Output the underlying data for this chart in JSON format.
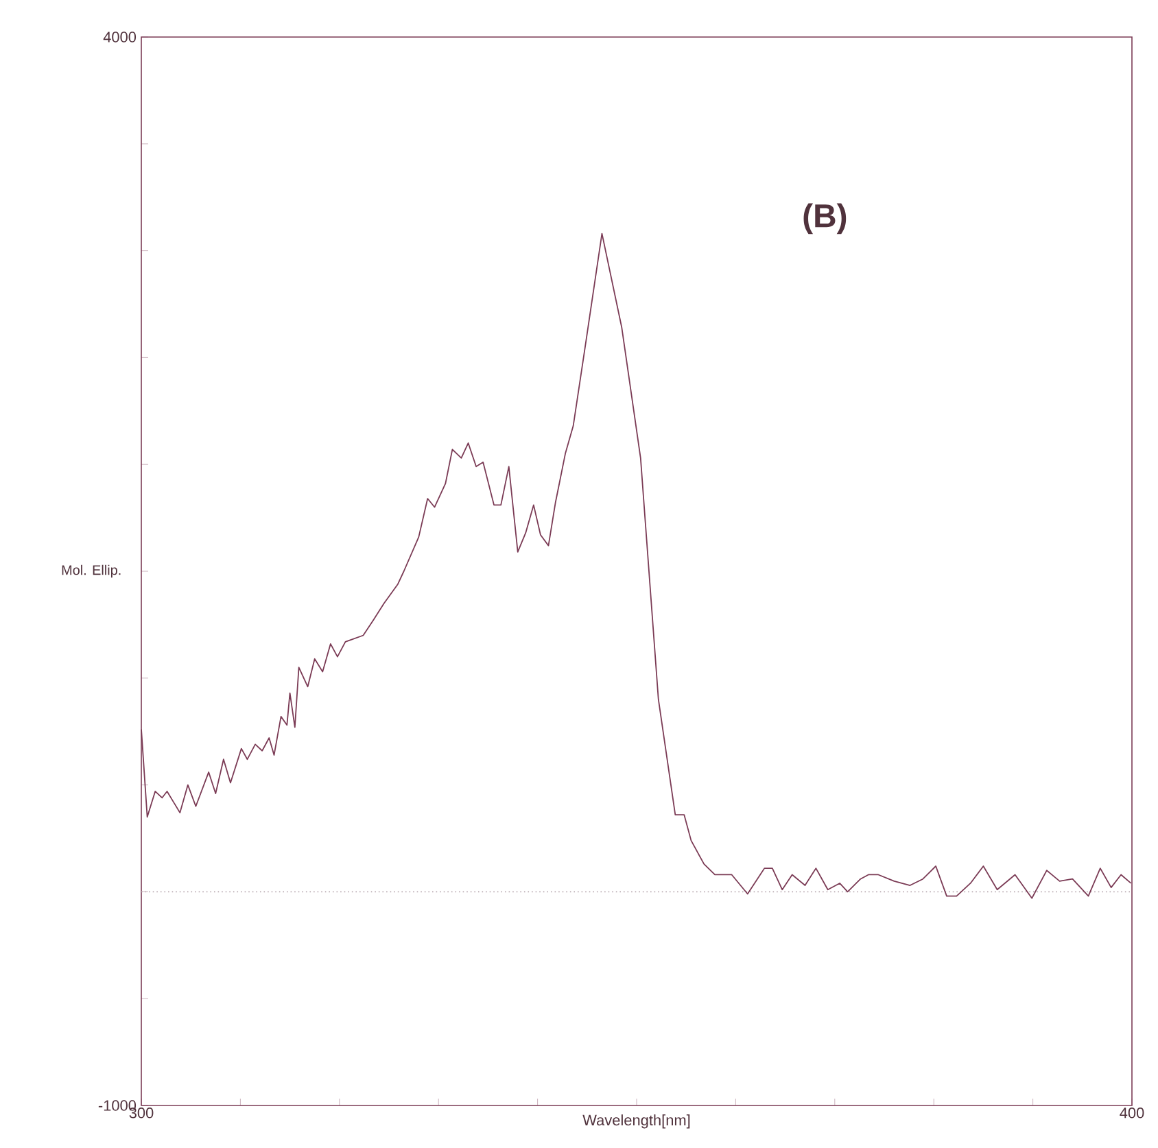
{
  "chart_data": {
    "type": "line",
    "xlabel": "Wavelength[nm]",
    "ylabel": "Mol. Ellip.",
    "annotations": [
      "(B)"
    ],
    "xlim": [
      300,
      400
    ],
    "ylim": [
      -1000,
      4000
    ],
    "xticks": [
      300,
      {
        "value": 310,
        "label": null
      },
      {
        "value": 320,
        "label": null
      },
      {
        "value": 330,
        "label": null
      },
      {
        "value": 340,
        "label": null
      },
      {
        "value": 350,
        "label": null
      },
      {
        "value": 360,
        "label": null
      },
      {
        "value": 370,
        "label": null
      },
      {
        "value": 380,
        "label": null
      },
      {
        "value": 390,
        "label": null
      },
      400
    ],
    "yticks": [
      -1000,
      {
        "value": -500,
        "label": null
      },
      {
        "value": 0,
        "label": null
      },
      {
        "value": 500,
        "label": null
      },
      {
        "value": 1000,
        "label": null
      },
      {
        "value": 1500,
        "label": null
      },
      {
        "value": 2000,
        "label": null
      },
      {
        "value": 2500,
        "label": null
      },
      {
        "value": 3000,
        "label": null
      },
      {
        "value": 3500,
        "label": null
      },
      4000
    ],
    "ref_lines": [
      {
        "axis": "y",
        "value": 0,
        "color": "#b8a8b0",
        "line_style": "dotted"
      }
    ],
    "marker": "none",
    "line_style": "solid",
    "series": [
      {
        "color": "#7b3b55",
        "x": [
          300,
          300.6,
          301.4,
          302.1,
          302.6,
          303.9,
          304.7,
          305.5,
          306.8,
          307.5,
          308.3,
          309.0,
          310.1,
          310.7,
          311.5,
          312.2,
          312.9,
          313.4,
          314.1,
          314.7,
          315.0,
          315.5,
          315.9,
          316.8,
          317.5,
          318.3,
          319.1,
          319.8,
          320.6,
          322.4,
          323.4,
          324.5,
          325.9,
          326.5,
          328.0,
          328.9,
          329.6,
          330.7,
          331.4,
          332.3,
          333.0,
          333.8,
          334.5,
          335.6,
          336.3,
          337.1,
          338.0,
          338.8,
          339.6,
          340.3,
          341.1,
          341.8,
          342.8,
          343.6,
          344.9,
          346.5,
          348.5,
          350.4,
          352.2,
          353.9,
          354.8,
          355.5,
          356.8,
          357.9,
          359.6,
          361.2,
          362.9,
          363.7,
          364.7,
          365.7,
          367.0,
          368.1,
          369.3,
          370.5,
          371.3,
          372.6,
          373.4,
          374.4,
          376.0,
          377.6,
          378.9,
          380.2,
          381.3,
          382.3,
          383.7,
          385.0,
          386.4,
          388.2,
          389.9,
          391.4,
          392.7,
          394.0,
          395.6,
          396.8,
          397.9,
          398.9,
          399.9
        ],
        "values": [
          760,
          350,
          470,
          440,
          470,
          370,
          500,
          400,
          560,
          460,
          620,
          510,
          670,
          620,
          690,
          660,
          720,
          640,
          820,
          780,
          930,
          770,
          1050,
          960,
          1090,
          1030,
          1160,
          1100,
          1170,
          1200,
          1270,
          1350,
          1440,
          1500,
          1660,
          1840,
          1800,
          1910,
          2070,
          2030,
          2100,
          1990,
          2010,
          1810,
          1810,
          1990,
          1590,
          1680,
          1810,
          1670,
          1620,
          1820,
          2050,
          2180,
          2580,
          3080,
          2640,
          2030,
          900,
          360,
          360,
          240,
          130,
          80,
          80,
          -10,
          110,
          110,
          10,
          80,
          30,
          110,
          10,
          40,
          0,
          60,
          80,
          80,
          50,
          30,
          60,
          120,
          -20,
          -20,
          40,
          120,
          10,
          80,
          -30,
          100,
          50,
          60,
          -20,
          110,
          20,
          80,
          40
        ]
      }
    ]
  }
}
